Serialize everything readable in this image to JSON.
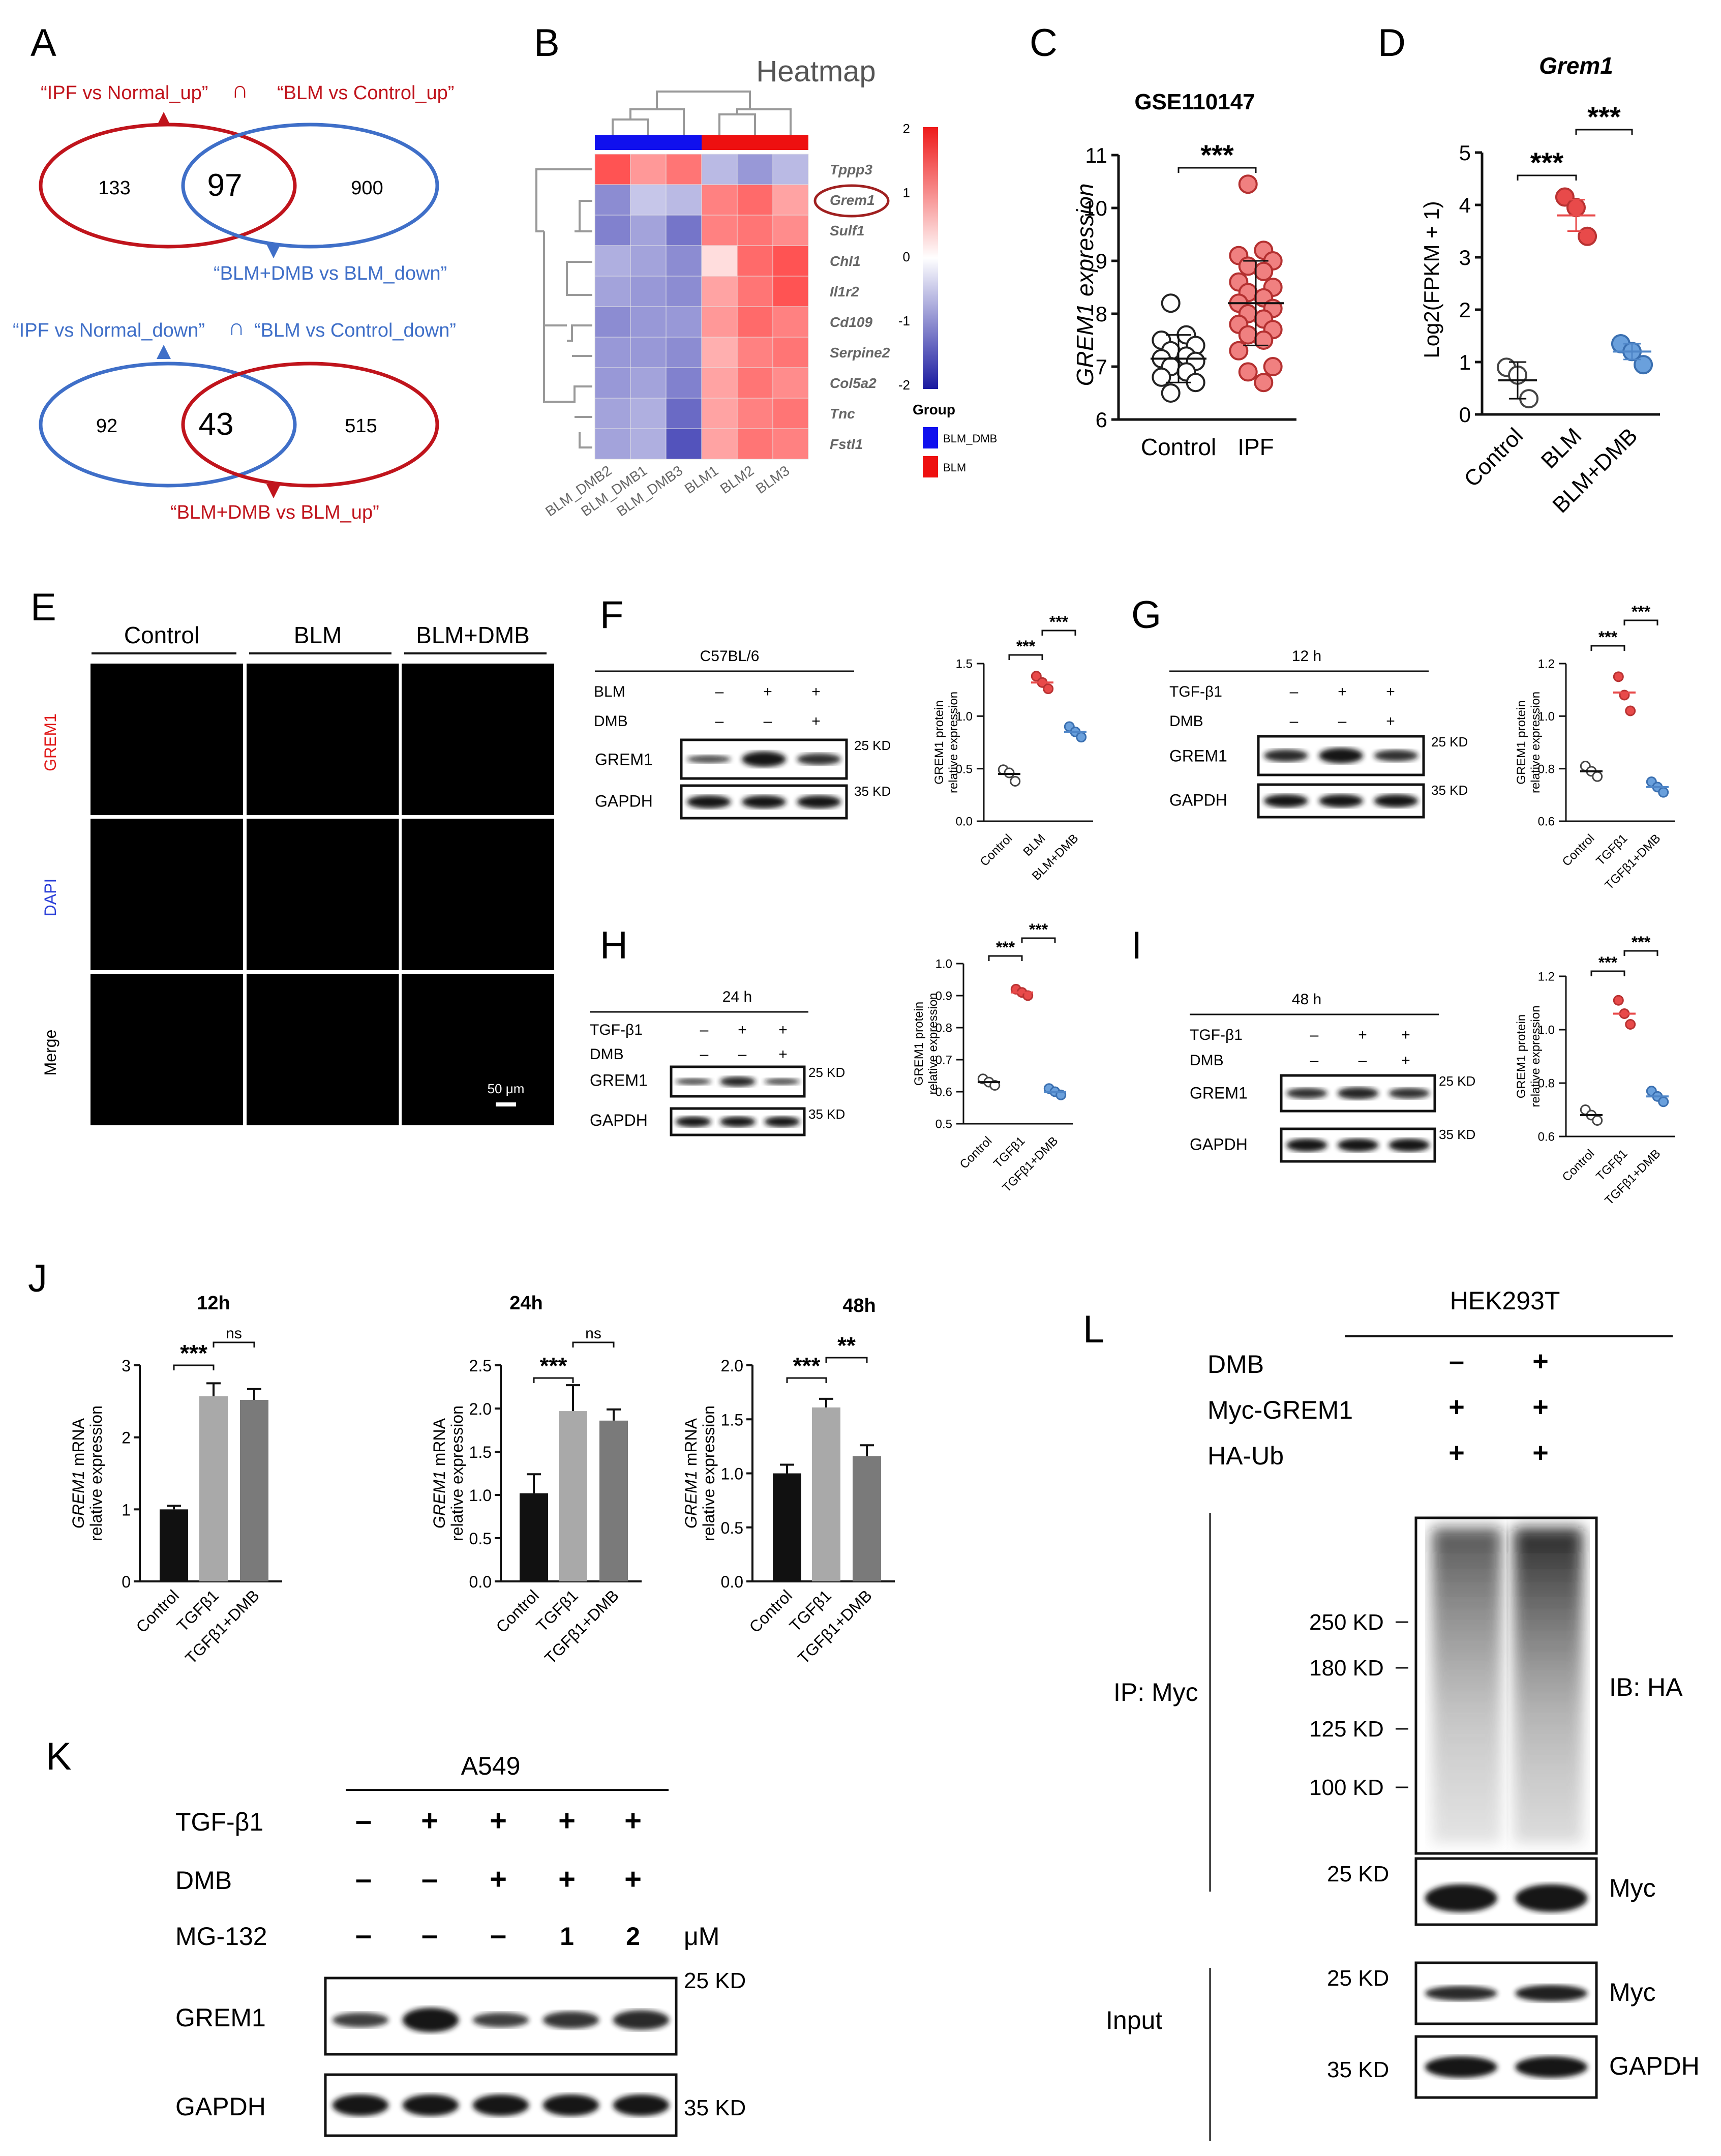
{
  "panels": {
    "A": {
      "label": "A",
      "venn1": {
        "left_title": "“IPF vs Normal_up”",
        "cap": "∩",
        "right_title": "“BLM vs Control_up”",
        "left_only": "133",
        "intersection": "97",
        "right_only": "900",
        "bottom_title": "“BLM+DMB vs BLM_down”"
      },
      "venn2": {
        "left_title": "“IPF vs Normal_down”",
        "cap": "∩",
        "right_title": "“BLM vs Control_down”",
        "left_only": "92",
        "intersection": "43",
        "right_only": "515",
        "bottom_title": "“BLM+DMB vs BLM_up”"
      },
      "colors": {
        "red": "#c0141c",
        "blue": "#3f6fc8"
      }
    },
    "B": {
      "label": "B",
      "title": "Heatmap",
      "genes": [
        "Tppp3",
        "Grem1",
        "Sulf1",
        "Chl1",
        "Il1r2",
        "Cd109",
        "Serpine2",
        "Col5a2",
        "Tnc",
        "Fstl1"
      ],
      "samples": [
        "BLM_DMB2",
        "BLM_DMB1",
        "BLM_DMB3",
        "BLM1",
        "BLM2",
        "BLM3"
      ],
      "legend_ticks": [
        "2",
        "1",
        "0",
        "-1",
        "-2"
      ],
      "group_title": "Group",
      "group_labels": [
        "BLM_DMB",
        "BLM"
      ],
      "group_colors": [
        "#1010ee",
        "#ee1010"
      ],
      "heat_values": [
        [
          1.5,
          0.9,
          1.2,
          -0.6,
          -0.9,
          -0.6
        ],
        [
          -1.0,
          -0.5,
          -0.6,
          1.1,
          1.3,
          0.8
        ],
        [
          -1.1,
          -0.8,
          -1.2,
          1.1,
          1.2,
          1.0
        ],
        [
          -0.7,
          -0.8,
          -1.0,
          0.3,
          1.3,
          1.5
        ],
        [
          -0.8,
          -0.9,
          -1.0,
          0.8,
          1.2,
          1.5
        ],
        [
          -1.0,
          -0.9,
          -0.9,
          0.9,
          1.3,
          1.1
        ],
        [
          -0.9,
          -0.9,
          -1.0,
          0.7,
          1.1,
          1.2
        ],
        [
          -0.9,
          -0.8,
          -1.1,
          0.8,
          1.2,
          1.0
        ],
        [
          -0.8,
          -0.7,
          -1.3,
          0.8,
          1.1,
          1.2
        ],
        [
          -0.8,
          -0.7,
          -1.5,
          0.8,
          1.2,
          1.1
        ]
      ]
    },
    "C": {
      "label": "C",
      "chart_data": {
        "type": "scatter",
        "title": "GSE110147",
        "ylabel": "GREM1  expression",
        "categories": [
          "Control",
          "IPF"
        ],
        "ylim": [
          6,
          11
        ],
        "yticks": [
          "6",
          "7",
          "8",
          "9",
          "10",
          "11"
        ],
        "groups": [
          {
            "name": "Control",
            "mean": 7.15,
            "sd": 0.45,
            "points": [
              8.2,
              7.6,
              7.5,
              7.4,
              7.3,
              7.2,
              7.15,
              7.1,
              7.0,
              6.9,
              6.8,
              6.7,
              6.5
            ]
          },
          {
            "name": "IPF",
            "mean": 8.2,
            "sd": 0.8,
            "points": [
              10.45,
              9.2,
              9.1,
              9.0,
              8.9,
              8.8,
              8.6,
              8.5,
              8.4,
              8.3,
              8.2,
              8.1,
              8.0,
              7.9,
              7.8,
              7.7,
              7.6,
              7.5,
              7.3,
              7.0,
              6.9,
              6.7
            ]
          }
        ],
        "significance": "***"
      }
    },
    "D": {
      "label": "D",
      "chart_data": {
        "type": "scatter",
        "title": "Grem1",
        "ylabel": "Log2(FPKM + 1)",
        "categories": [
          "Control",
          "BLM",
          "BLM+DMB"
        ],
        "ylim": [
          0,
          5
        ],
        "yticks": [
          "0",
          "1",
          "2",
          "3",
          "4",
          "5"
        ],
        "groups": [
          {
            "name": "Control",
            "mean": 0.65,
            "sd": 0.35,
            "points": [
              0.9,
              0.75,
              0.3
            ]
          },
          {
            "name": "BLM",
            "mean": 3.8,
            "sd": 0.3,
            "points": [
              4.15,
              3.95,
              3.4
            ]
          },
          {
            "name": "BLM+DMB",
            "mean": 1.2,
            "sd": 0.15,
            "points": [
              1.35,
              1.2,
              0.95
            ]
          }
        ],
        "significance": [
          "***",
          "***"
        ]
      }
    },
    "E": {
      "label": "E",
      "columns": [
        "Control",
        "BLM",
        "BLM+DMB"
      ],
      "rows": [
        "GREM1",
        "DAPI",
        "Merge"
      ],
      "scale_bar": "50 μm"
    },
    "F": {
      "label": "F",
      "header": "C57BL/6",
      "row_labels": [
        "BLM",
        "DMB"
      ],
      "row_signs": [
        [
          "–",
          "+",
          "+"
        ],
        [
          "–",
          "–",
          "+"
        ]
      ],
      "blots": [
        "GREM1",
        "GAPDH"
      ],
      "markers": [
        "25 KD",
        "35 KD"
      ],
      "chart_data": {
        "type": "scatter",
        "ylabel": "GREM1 protein relative expression",
        "categories": [
          "Control",
          "BLM",
          "BLM+DMB"
        ],
        "ylim": [
          0,
          1.5
        ],
        "yticks": [
          "0.0",
          "0.5",
          "1.0",
          "1.5"
        ],
        "groups": [
          {
            "name": "Control",
            "mean": 0.45,
            "points": [
              0.49,
              0.46,
              0.38
            ]
          },
          {
            "name": "BLM",
            "mean": 1.32,
            "points": [
              1.38,
              1.32,
              1.26
            ]
          },
          {
            "name": "BLM+DMB",
            "mean": 0.85,
            "points": [
              0.9,
              0.85,
              0.8
            ]
          }
        ],
        "significance": [
          "***",
          "***"
        ]
      }
    },
    "G": {
      "label": "G",
      "header": "12 h",
      "row_labels": [
        "TGF-β1",
        "DMB"
      ],
      "row_signs": [
        [
          "–",
          "+",
          "+"
        ],
        [
          "–",
          "–",
          "+"
        ]
      ],
      "blots": [
        "GREM1",
        "GAPDH"
      ],
      "markers": [
        "25 KD",
        "35 KD"
      ],
      "chart_data": {
        "type": "scatter",
        "ylabel": "GREM1 protein relative expression",
        "categories": [
          "Control",
          "TGFβ1",
          "TGFβ1+DMB"
        ],
        "ylim": [
          0.6,
          1.2
        ],
        "yticks": [
          "0.6",
          "0.8",
          "1.0",
          "1.2"
        ],
        "groups": [
          {
            "name": "Control",
            "mean": 0.79,
            "points": [
              0.81,
              0.79,
              0.77
            ]
          },
          {
            "name": "TGFβ1",
            "mean": 1.09,
            "points": [
              1.15,
              1.08,
              1.02
            ]
          },
          {
            "name": "TGFβ1+DMB",
            "mean": 0.73,
            "points": [
              0.75,
              0.73,
              0.71
            ]
          }
        ],
        "significance": [
          "***",
          "***"
        ]
      }
    },
    "H": {
      "label": "H",
      "header": "24 h",
      "row_labels": [
        "TGF-β1",
        "DMB"
      ],
      "row_signs": [
        [
          "–",
          "+",
          "+"
        ],
        [
          "–",
          "–",
          "+"
        ]
      ],
      "blots": [
        "GREM1",
        "GAPDH"
      ],
      "markers": [
        "25 KD",
        "35 KD"
      ],
      "chart_data": {
        "type": "scatter",
        "ylabel": "GREM1 protein relative expression",
        "categories": [
          "Control",
          "TGFβ1",
          "TGFβ1+DMB"
        ],
        "ylim": [
          0.5,
          1.0
        ],
        "yticks": [
          "0.5",
          "0.6",
          "0.7",
          "0.8",
          "0.9",
          "1.0"
        ],
        "groups": [
          {
            "name": "Control",
            "mean": 0.63,
            "points": [
              0.64,
              0.63,
              0.62
            ]
          },
          {
            "name": "TGFβ1",
            "mean": 0.91,
            "points": [
              0.92,
              0.91,
              0.9
            ]
          },
          {
            "name": "TGFβ1+DMB",
            "mean": 0.6,
            "points": [
              0.61,
              0.6,
              0.59
            ]
          }
        ],
        "significance": [
          "***",
          "***"
        ]
      }
    },
    "I": {
      "label": "I",
      "header": "48 h",
      "row_labels": [
        "TGF-β1",
        "DMB"
      ],
      "row_signs": [
        [
          "–",
          "+",
          "+"
        ],
        [
          "–",
          "–",
          "+"
        ]
      ],
      "blots": [
        "GREM1",
        "GAPDH"
      ],
      "markers": [
        "25 KD",
        "35 KD"
      ],
      "chart_data": {
        "type": "scatter",
        "ylabel": "GREM1 protein relative expression",
        "categories": [
          "Control",
          "TGFβ1",
          "TGFβ1+DMB"
        ],
        "ylim": [
          0.6,
          1.2
        ],
        "yticks": [
          "0.6",
          "0.8",
          "1.0",
          "1.2"
        ],
        "groups": [
          {
            "name": "Control",
            "mean": 0.68,
            "points": [
              0.7,
              0.68,
              0.66
            ]
          },
          {
            "name": "TGFβ1",
            "mean": 1.06,
            "points": [
              1.11,
              1.06,
              1.02
            ]
          },
          {
            "name": "TGFβ1+DMB",
            "mean": 0.75,
            "points": [
              0.77,
              0.75,
              0.73
            ]
          }
        ],
        "significance": [
          "***",
          "***"
        ]
      }
    },
    "J": {
      "label": "J",
      "ylabel_gene": "GREM1",
      "ylabel_rest": " mRNA",
      "ylabel_line2": "relative expression",
      "chart_data": [
        {
          "type": "bar",
          "title": "12h",
          "categories": [
            "Control",
            "TGFβ1",
            "TGFβ1+DMB"
          ],
          "values": [
            1.0,
            2.57,
            2.52
          ],
          "errors": [
            0.05,
            0.18,
            0.15
          ],
          "ylim": [
            0,
            3
          ],
          "yticks": [
            "0",
            "1",
            "2",
            "3"
          ],
          "significance": [
            "***",
            "ns"
          ]
        },
        {
          "type": "bar",
          "title": "24h",
          "categories": [
            "Control",
            "TGFβ1",
            "TGFβ1+DMB"
          ],
          "values": [
            1.02,
            1.97,
            1.86
          ],
          "errors": [
            0.22,
            0.3,
            0.13
          ],
          "ylim": [
            0,
            2.5
          ],
          "yticks": [
            "0.0",
            "0.5",
            "1.0",
            "1.5",
            "2.0",
            "2.5"
          ],
          "significance": [
            "***",
            "ns"
          ]
        },
        {
          "type": "bar",
          "title": "48h",
          "categories": [
            "Control",
            "TGFβ1",
            "TGFβ1+DMB"
          ],
          "values": [
            1.0,
            1.61,
            1.16
          ],
          "errors": [
            0.08,
            0.08,
            0.1
          ],
          "ylim": [
            0,
            2.0
          ],
          "yticks": [
            "0.0",
            "0.5",
            "1.0",
            "1.5",
            "2.0"
          ],
          "significance": [
            "***",
            "**"
          ]
        }
      ],
      "bar_colors": [
        "#111111",
        "#a9a9a9",
        "#7a7a7a"
      ]
    },
    "K": {
      "label": "K",
      "header": "A549",
      "row_labels": [
        "TGF-β1",
        "DMB",
        "MG-132"
      ],
      "row_signs": [
        [
          "–",
          "+",
          "+",
          "+",
          "+"
        ],
        [
          "–",
          "–",
          "+",
          "+",
          "+"
        ],
        [
          "–",
          "–",
          "–",
          "1",
          "2"
        ]
      ],
      "unit": "μM",
      "blots": [
        "GREM1",
        "GAPDH"
      ],
      "markers": [
        "25 KD",
        "35 KD"
      ]
    },
    "L": {
      "label": "L",
      "header": "HEK293T",
      "row_labels": [
        "DMB",
        "Myc-GREM1",
        "HA-Ub"
      ],
      "row_signs": [
        [
          "–",
          "+"
        ],
        [
          "+",
          "+"
        ],
        [
          "+",
          "+"
        ]
      ],
      "ip_label": "IP: Myc",
      "input_label": "Input",
      "markers_ha": [
        "250 KD",
        "180 KD",
        "125 KD",
        "100 KD"
      ],
      "ib_ha": "IB: HA",
      "marker_myc": "25 KD",
      "myc": "Myc",
      "marker_myc_input": "25 KD",
      "myc_input": "Myc",
      "marker_gapdh": "35 KD",
      "gapdh": "GAPDH"
    }
  }
}
